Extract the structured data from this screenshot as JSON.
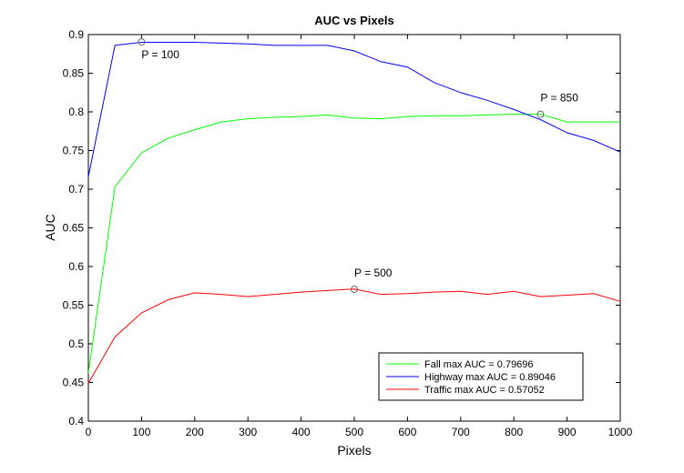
{
  "chart_data": {
    "type": "line",
    "title": "AUC vs Pixels",
    "xlabel": "Pixels",
    "ylabel": "AUC",
    "xlim": [
      0,
      1000
    ],
    "ylim": [
      0.4,
      0.9
    ],
    "xticks": [
      0,
      100,
      200,
      300,
      400,
      500,
      600,
      700,
      800,
      900,
      1000
    ],
    "yticks": [
      0.4,
      0.45,
      0.5,
      0.55,
      0.6,
      0.65,
      0.7,
      0.75,
      0.8,
      0.85,
      0.9
    ],
    "xtick_labels": [
      "0",
      "100",
      "200",
      "300",
      "400",
      "500",
      "600",
      "700",
      "800",
      "900",
      "1000"
    ],
    "ytick_labels": [
      "0.4",
      "0.45",
      "0.5",
      "0.55",
      "0.6",
      "0.65",
      "0.7",
      "0.75",
      "0.8",
      "0.85",
      "0.9"
    ],
    "grid": false,
    "legend_position": "bottom-right",
    "x": [
      0,
      50,
      100,
      150,
      200,
      250,
      300,
      350,
      400,
      450,
      500,
      550,
      600,
      650,
      700,
      750,
      800,
      850,
      900,
      950,
      1000
    ],
    "series": [
      {
        "name": "Fall max AUC = 0.79696",
        "color": "#00ff00",
        "values": [
          0.462,
          0.703,
          0.747,
          0.766,
          0.777,
          0.787,
          0.791,
          0.793,
          0.794,
          0.796,
          0.792,
          0.791,
          0.794,
          0.795,
          0.795,
          0.796,
          0.797,
          0.797,
          0.787,
          0.787,
          0.787
        ]
      },
      {
        "name": "Highway max AUC = 0.89046",
        "color": "#0000ff",
        "values": [
          0.716,
          0.886,
          0.89,
          0.89,
          0.89,
          0.889,
          0.888,
          0.886,
          0.886,
          0.886,
          0.879,
          0.865,
          0.858,
          0.838,
          0.825,
          0.815,
          0.803,
          0.79,
          0.773,
          0.763,
          0.748
        ]
      },
      {
        "name": "Traffic max AUC = 0.57052",
        "color": "#ff0000",
        "values": [
          0.449,
          0.509,
          0.54,
          0.557,
          0.566,
          0.564,
          0.561,
          0.564,
          0.567,
          0.569,
          0.571,
          0.564,
          0.565,
          0.567,
          0.568,
          0.564,
          0.568,
          0.561,
          0.563,
          0.565,
          0.555
        ]
      }
    ],
    "annotations": [
      {
        "text": "P = 100",
        "x": 100,
        "y": 0.89046,
        "series": 1
      },
      {
        "text": "P = 500",
        "x": 500,
        "y": 0.57052,
        "series": 2
      },
      {
        "text": "P = 850",
        "x": 850,
        "y": 0.79696,
        "series": 0
      }
    ]
  }
}
